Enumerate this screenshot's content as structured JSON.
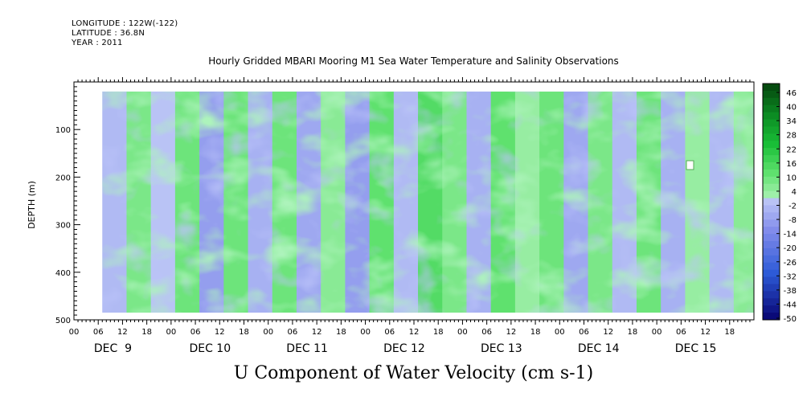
{
  "header": {
    "longitude": "LONGITUDE : 122W(-122)",
    "latitude": "LATITUDE : 36.8N",
    "year": "YEAR : 2011"
  },
  "title": "Hourly Gridded MBARI Mooring M1 Sea Water Temperature and Salinity Observations",
  "footer": "U Component of Water Velocity (cm s-1)",
  "chart_data": {
    "type": "heatmap",
    "title": "Hourly Gridded MBARI Mooring M1 Sea Water Temperature and Salinity Observations",
    "xlabel": "",
    "ylabel": "DEPTH (m)",
    "colorbar_label": "U Component of Water Velocity (cm s-1)",
    "y_axis": {
      "range": [
        0,
        500
      ],
      "reversed": true,
      "ticks": [
        100,
        200,
        300,
        400,
        500
      ]
    },
    "x_axis": {
      "hour_ticks": [
        "00",
        "06",
        "12",
        "18",
        "00",
        "06",
        "12",
        "18",
        "00",
        "06",
        "12",
        "18",
        "00",
        "06",
        "12",
        "18",
        "00",
        "06",
        "12",
        "18",
        "00",
        "06",
        "12",
        "18",
        "00",
        "06",
        "12",
        "18"
      ],
      "day_labels": [
        "DEC  9",
        "DEC 10",
        "DEC 11",
        "DEC 12",
        "DEC 13",
        "DEC 14",
        "DEC 15"
      ]
    },
    "data_extent": {
      "time_start_hours": 7,
      "time_end_hours": 168,
      "depth_min": 20,
      "depth_max": 485
    },
    "colorbar": {
      "ticks": [
        46,
        40,
        34,
        28,
        22,
        16,
        10,
        4,
        -2,
        -8,
        -14,
        -20,
        -26,
        -32,
        -38,
        -44,
        -50
      ],
      "levels": [
        46,
        43,
        40,
        37,
        34,
        31,
        28,
        25,
        22,
        19,
        16,
        13,
        10,
        7,
        4,
        1,
        -2,
        -5,
        -8,
        -11,
        -14,
        -17,
        -20,
        -23,
        -26,
        -29,
        -32,
        -35,
        -38,
        -41,
        -44,
        -47,
        -50
      ]
    },
    "bands": [
      {
        "t": 10,
        "v": -4
      },
      {
        "t": 16,
        "v": 6
      },
      {
        "t": 22,
        "v": -2
      },
      {
        "t": 28,
        "v": 8
      },
      {
        "t": 34,
        "v": -10
      },
      {
        "t": 40,
        "v": 8
      },
      {
        "t": 46,
        "v": -6
      },
      {
        "t": 52,
        "v": 8
      },
      {
        "t": 58,
        "v": -8
      },
      {
        "t": 64,
        "v": 4
      },
      {
        "t": 70,
        "v": -10
      },
      {
        "t": 76,
        "v": 10
      },
      {
        "t": 82,
        "v": -4
      },
      {
        "t": 88,
        "v": 12
      },
      {
        "t": 94,
        "v": 6
      },
      {
        "t": 100,
        "v": -6
      },
      {
        "t": 106,
        "v": 10
      },
      {
        "t": 112,
        "v": 2
      },
      {
        "t": 118,
        "v": 8
      },
      {
        "t": 124,
        "v": -8
      },
      {
        "t": 130,
        "v": 6
      },
      {
        "t": 136,
        "v": -4
      },
      {
        "t": 142,
        "v": 8
      },
      {
        "t": 148,
        "v": -6
      },
      {
        "t": 154,
        "v": 2
      },
      {
        "t": 160,
        "v": -4
      },
      {
        "t": 166,
        "v": 4
      }
    ]
  }
}
